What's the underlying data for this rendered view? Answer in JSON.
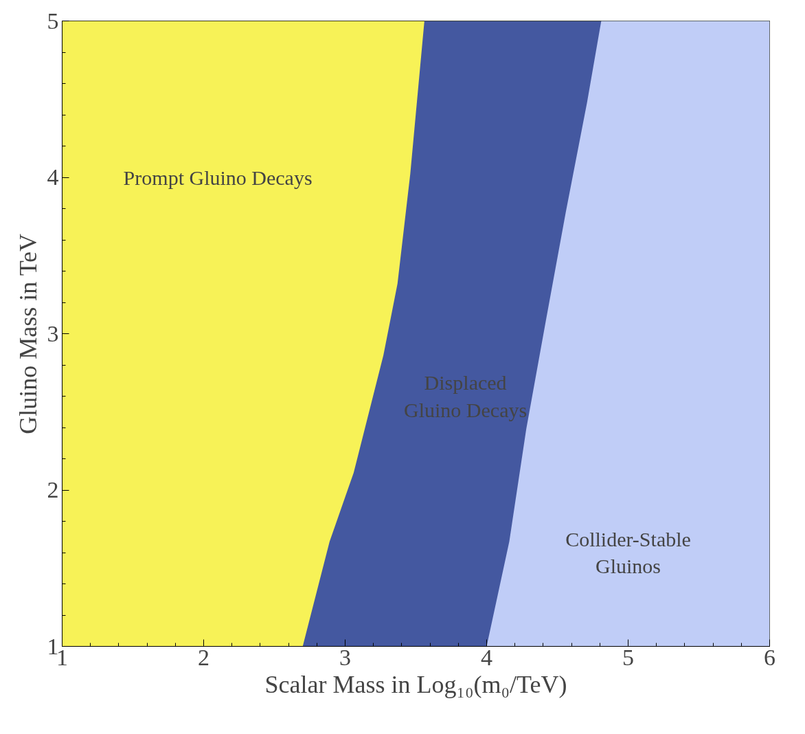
{
  "chart_data": {
    "type": "area",
    "xlabel": "Scalar Mass in Log₁₀(m₀/TeV)",
    "ylabel": "Gluino Mass in TeV",
    "x": [
      1,
      2.7,
      2.89,
      3.06,
      3.27,
      3.37,
      3.46,
      3.56,
      4.0,
      4.16,
      4.28,
      4.42,
      4.56,
      4.71,
      4.81,
      6
    ],
    "series": [
      {
        "color": "#4458a0",
        "values": [
          1,
          1,
          1.67,
          2.11,
          2.86,
          3.32,
          4.02,
          5,
          5,
          5,
          5,
          5,
          5,
          5,
          5,
          5
        ]
      },
      {
        "color": "#c0cdf7",
        "values": [
          null,
          null,
          null,
          null,
          null,
          null,
          null,
          null,
          1,
          1.67,
          2.39,
          3.09,
          3.78,
          4.48,
          5,
          5
        ]
      }
    ],
    "bands": [
      {
        "axis": "x",
        "from": 1,
        "to": 6,
        "color": "#f7f257",
        "label": "Prompt Gluino Decays"
      }
    ],
    "xlim": [
      1,
      6
    ],
    "ylim": [
      1,
      5
    ],
    "xticks": [
      1,
      2,
      3,
      4,
      5,
      6
    ],
    "yticks": [
      1,
      2,
      3,
      4,
      5
    ],
    "grid": false,
    "annotations": [
      "Displaced\nGluino Decays",
      "Collider-Stable\nGluinos"
    ]
  }
}
